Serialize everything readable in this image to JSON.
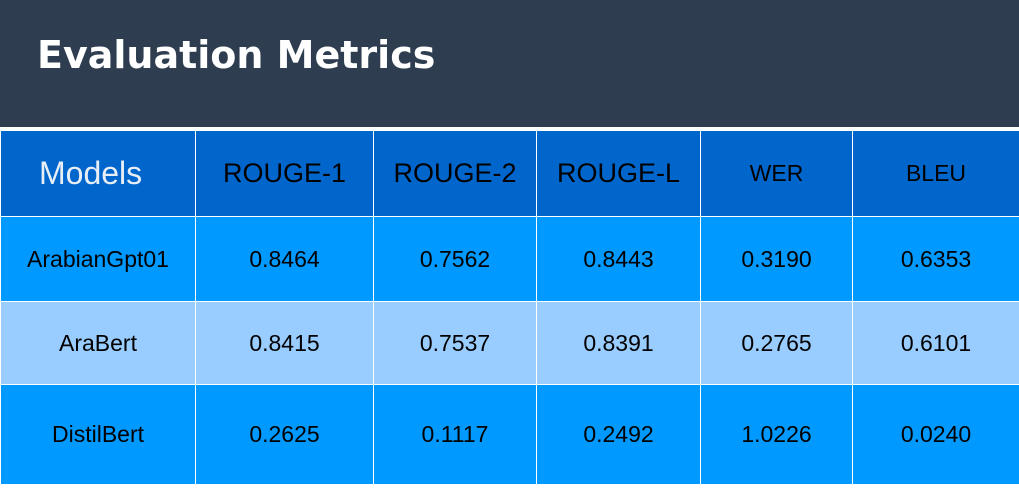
{
  "header": {
    "title": "Evaluation Metrics",
    "background_color": "#2e3e50"
  },
  "table": {
    "columns": [
      "Models",
      "ROUGE-1",
      "ROUGE-2",
      "ROUGE-L",
      "WER",
      "BLEU"
    ],
    "rows": [
      {
        "model": "ArabianGpt01",
        "rouge1": "0.8464",
        "rouge2": "0.7562",
        "rougeL": "0.8443",
        "wer": "0.3190",
        "bleu": "0.6353"
      },
      {
        "model": "AraBert",
        "rouge1": "0.8415",
        "rouge2": "0.7537",
        "rougeL": "0.8391",
        "wer": "0.2765",
        "bleu": "0.6101"
      },
      {
        "model": "DistilBert",
        "rouge1": "0.2625",
        "rouge2": "0.1117",
        "rougeL": "0.2492",
        "wer": "1.0226",
        "bleu": "0.0240"
      }
    ],
    "colors": {
      "header": "#0066cc",
      "row_dark": "#0099ff",
      "row_light": "#99ccff"
    }
  }
}
